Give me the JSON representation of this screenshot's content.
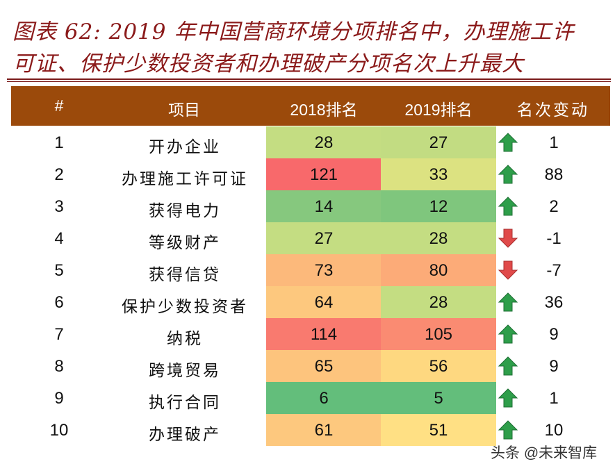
{
  "title": {
    "line1": "图表 62: 2019 年中国营商环境分项排名中，办理施工许",
    "line2": "可证、保护少数投资者和办理破产分项名次上升最大"
  },
  "table": {
    "headers": [
      "#",
      "项目",
      "2018排名",
      "2019排名",
      "名次变动"
    ],
    "rows": [
      {
        "n": "1",
        "item": "开办企业",
        "r2018": "28",
        "r2019": "27",
        "dir": "up",
        "change": "1",
        "c2018": "#c4dd82",
        "c2019": "#c2dc82"
      },
      {
        "n": "2",
        "item": "办理施工许可证",
        "r2018": "121",
        "r2019": "33",
        "dir": "up",
        "change": "88",
        "c2018": "#f8696b",
        "c2019": "#dce281"
      },
      {
        "n": "3",
        "item": "获得电力",
        "r2018": "14",
        "r2019": "12",
        "dir": "up",
        "change": "2",
        "c2018": "#86c87e",
        "c2019": "#7fc67d"
      },
      {
        "n": "4",
        "item": "等级财产",
        "r2018": "27",
        "r2019": "28",
        "dir": "down",
        "change": "-1",
        "c2018": "#c4dd82",
        "c2019": "#c4dd82"
      },
      {
        "n": "5",
        "item": "获得信贷",
        "r2018": "73",
        "r2019": "80",
        "dir": "down",
        "change": "-7",
        "c2018": "#fcb97b",
        "c2019": "#fcab78"
      },
      {
        "n": "6",
        "item": "保护少数投资者",
        "r2018": "64",
        "r2019": "28",
        "dir": "up",
        "change": "36",
        "c2018": "#fdc87e",
        "c2019": "#c4dd82"
      },
      {
        "n": "7",
        "item": "纳税",
        "r2018": "114",
        "r2019": "105",
        "dir": "up",
        "change": "9",
        "c2018": "#f97a6f",
        "c2019": "#fa8b72"
      },
      {
        "n": "8",
        "item": "跨境贸易",
        "r2018": "65",
        "r2019": "56",
        "dir": "up",
        "change": "9",
        "c2018": "#fdc47d",
        "c2019": "#fed880"
      },
      {
        "n": "9",
        "item": "执行合同",
        "r2018": "6",
        "r2019": "5",
        "dir": "up",
        "change": "1",
        "c2018": "#63be7b",
        "c2019": "#63be7b"
      },
      {
        "n": "10",
        "item": "办理破产",
        "r2018": "61",
        "r2019": "51",
        "dir": "up",
        "change": "10",
        "c2018": "#fdc87e",
        "c2019": "#ffe084"
      }
    ]
  },
  "colors": {
    "header_bg": "#9b4a0b",
    "title": "#8b1a1a",
    "up": "#2e9e4a",
    "down": "#e04a4a"
  },
  "watermark": "头条 @未来智库"
}
